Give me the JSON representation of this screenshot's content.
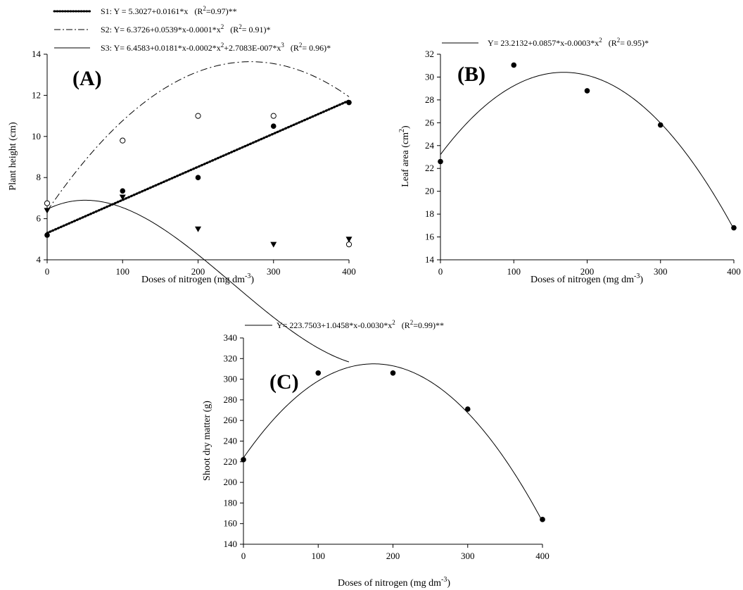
{
  "chart_data": [
    {
      "type": "scatter",
      "panel": "(A)",
      "xlabel": "Doses of nitrogen (mg dm-3)",
      "ylabel": "Plant height (cm)",
      "xlim": [
        0,
        400
      ],
      "ylim": [
        4,
        14
      ],
      "xticks": [
        0,
        100,
        200,
        300,
        400
      ],
      "yticks": [
        4,
        6,
        8,
        10,
        12,
        14
      ],
      "series": [
        {
          "name": "S1: Y = 5.3027+0.0161*x (R2=0.97)**",
          "marker": "filled-circle",
          "line": "dotted-bold",
          "coef": [
            5.3027,
            0.0161
          ],
          "x": [
            0,
            100,
            200,
            300,
            400
          ],
          "values": [
            5.2,
            7.35,
            8.0,
            10.5,
            11.65
          ]
        },
        {
          "name": "S2: Y= 6.3726+0.0539*x-0.0001*x2 (R2= 0.91)*",
          "marker": "open-circle",
          "line": "dash-dot",
          "coef": [
            6.3726,
            0.0539,
            -0.0001
          ],
          "x": [
            0,
            100,
            200,
            300,
            400
          ],
          "values": [
            6.75,
            9.8,
            11.0,
            11.0,
            4.75
          ]
        },
        {
          "name": "S3: Y= 6.4583+0.0181*x-0.0002*x2+2.7083E-007*x3 (R2= 0.96)*",
          "marker": "filled-triangle-down",
          "line": "solid",
          "coef": [
            6.4583,
            0.0181,
            -0.0002,
            2.7083e-07
          ],
          "x": [
            0,
            100,
            200,
            300,
            400
          ],
          "values": [
            6.4,
            7.05,
            5.5,
            4.75,
            5.0
          ]
        }
      ]
    },
    {
      "type": "scatter",
      "panel": "(B)",
      "xlabel": "Doses of nitrogen (mg dm-3)",
      "ylabel": "Leaf area (cm2)",
      "xlim": [
        0,
        400
      ],
      "ylim": [
        14,
        32
      ],
      "xticks": [
        0,
        100,
        200,
        300,
        400
      ],
      "yticks": [
        14,
        16,
        18,
        20,
        22,
        24,
        26,
        28,
        30,
        32
      ],
      "series": [
        {
          "name": "Y= 23.2132+0.0857*x-0.0003*x2 (R2= 0.95)*",
          "marker": "filled-circle",
          "line": "solid",
          "coef": [
            23.2132,
            0.0857,
            -0.000255
          ],
          "x": [
            0,
            100,
            200,
            300,
            400
          ],
          "values": [
            22.6,
            31.05,
            28.8,
            25.8,
            16.8
          ]
        }
      ]
    },
    {
      "type": "scatter",
      "panel": "(C)",
      "xlabel": "Doses of nitrogen (mg dm-3)",
      "ylabel": "Shoot dry matter (g)",
      "xlim": [
        0,
        400
      ],
      "ylim": [
        140,
        340
      ],
      "xticks": [
        0,
        100,
        200,
        300,
        400
      ],
      "yticks": [
        140,
        160,
        180,
        200,
        220,
        240,
        260,
        280,
        300,
        320,
        340
      ],
      "series": [
        {
          "name": "Y= 223.7503+1.0458*x-0.0030*x2 (R2=0.99)**",
          "marker": "filled-circle",
          "line": "solid",
          "coef": [
            223.7503,
            1.0458,
            -0.003
          ],
          "x": [
            0,
            100,
            200,
            300,
            400
          ],
          "values": [
            222,
            306,
            306,
            271,
            164
          ]
        }
      ]
    }
  ]
}
